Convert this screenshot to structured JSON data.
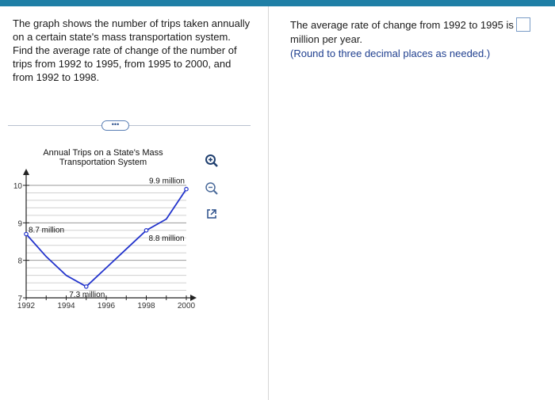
{
  "question": {
    "text": "The graph shows the number of trips taken annually on a certain state's mass transportation system. Find the average rate of change of the number of trips from 1992 to 1995, from 1995 to 2000, and from 1992 to 1998."
  },
  "more_button": {
    "label": "•••"
  },
  "answer": {
    "prompt": "The average rate of change from 1992 to 1995 is",
    "unit": "million per year.",
    "hint": "(Round to three decimal places as needed.)",
    "value": ""
  },
  "tools": {
    "zoom_in_icon": "zoom-in-icon",
    "zoom_out_icon": "zoom-out-icon",
    "popout_icon": "external-link-icon"
  },
  "chart_data": {
    "type": "line",
    "title": "Annual Trips on a State's Mass Transportation System",
    "xlim": [
      1992,
      2000
    ],
    "ylim": [
      7,
      10
    ],
    "x_ticks": [
      1992,
      1994,
      1996,
      1998,
      2000
    ],
    "y_ticks": [
      7,
      8,
      9,
      10
    ],
    "grid": true,
    "series": [
      {
        "x": [
          1992,
          1993,
          1994,
          1995,
          1996,
          1997,
          1998,
          1999,
          2000
        ],
        "values": [
          8.7,
          8.1,
          7.6,
          7.3,
          7.8,
          8.3,
          8.8,
          9.1,
          9.9
        ]
      }
    ],
    "annotations": [
      {
        "text": "8.7 million",
        "x": 1992,
        "y": 8.7
      },
      {
        "text": "7.3 million",
        "x": 1995,
        "y": 7.3
      },
      {
        "text": "8.8 million",
        "x": 1998,
        "y": 8.8
      },
      {
        "text": "9.9 million",
        "x": 2000,
        "y": 9.9
      }
    ],
    "color": "#2233cc"
  }
}
